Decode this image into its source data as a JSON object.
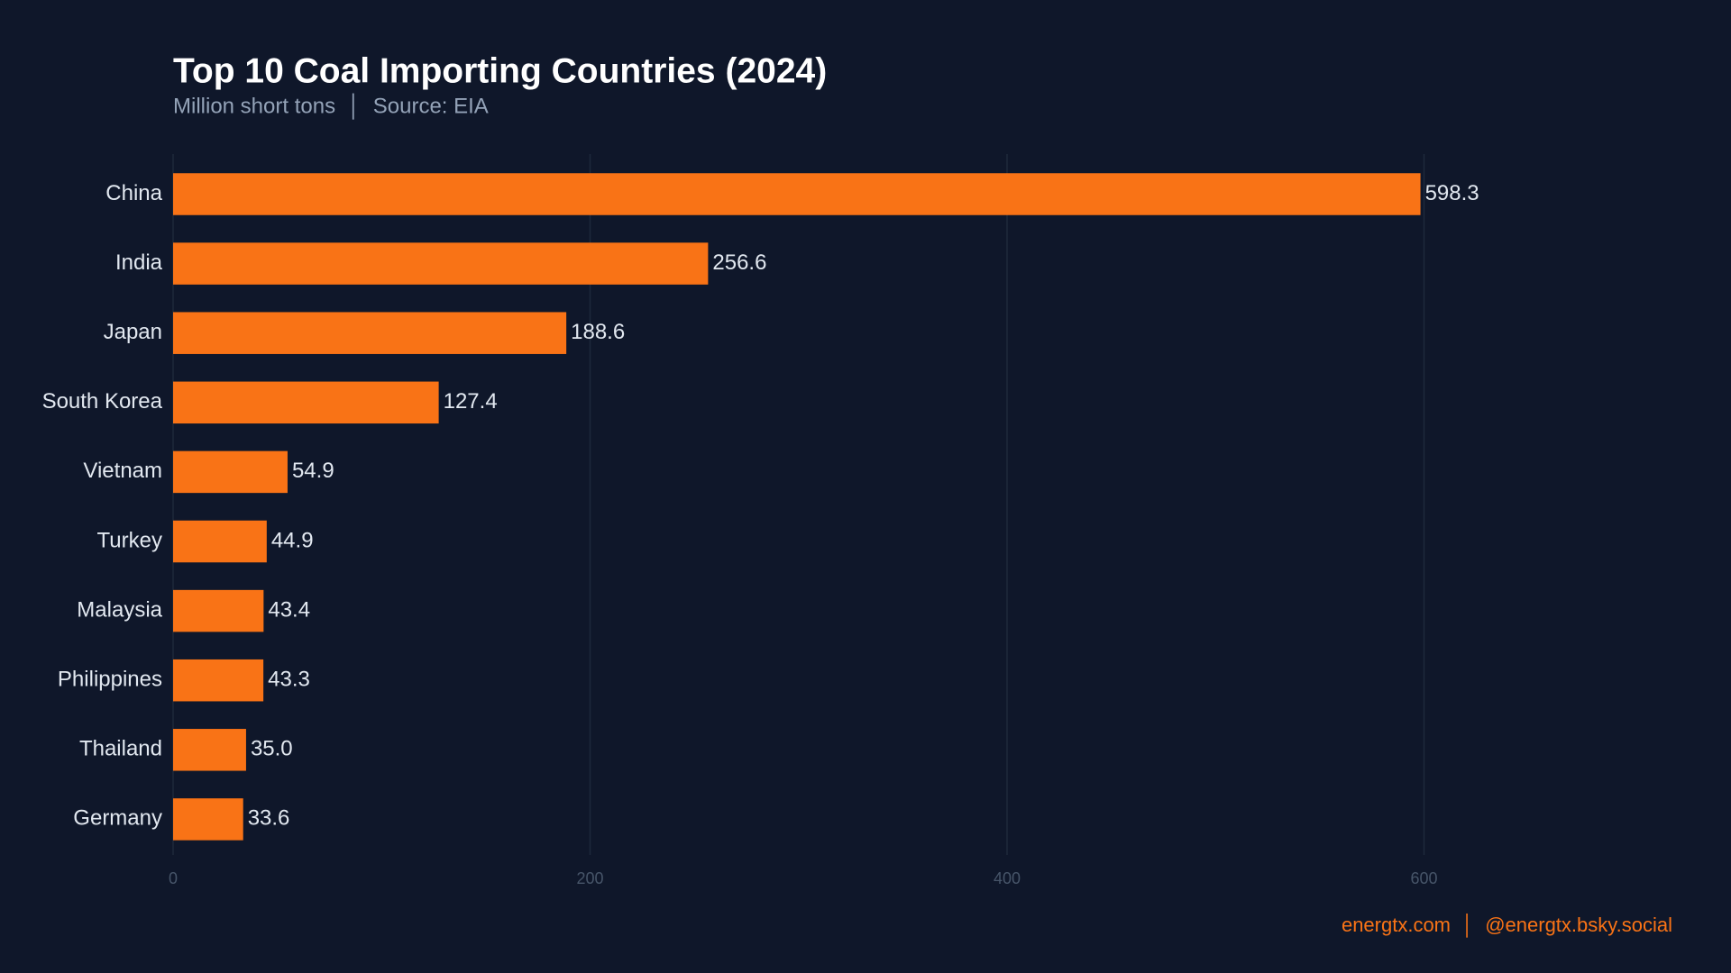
{
  "chart_data": {
    "type": "bar",
    "orientation": "horizontal",
    "title": "Top 10 Coal Importing Countries (2024)",
    "subtitle": "Million short tons  │  Source: EIA",
    "caption": "energtx.com  │  @energtx.bsky.social",
    "categories": [
      "China",
      "India",
      "Japan",
      "South Korea",
      "Vietnam",
      "Turkey",
      "Malaysia",
      "Philippines",
      "Thailand",
      "Germany"
    ],
    "values": [
      598.3,
      256.6,
      188.6,
      127.4,
      54.9,
      44.9,
      43.4,
      43.3,
      35.0,
      33.6
    ],
    "value_labels": [
      "598.3",
      "256.6",
      "188.6",
      "127.4",
      "54.9",
      "44.9",
      "43.4",
      "43.3",
      "35.0",
      "33.6"
    ],
    "color": "#f97316",
    "xlim": [
      0,
      720
    ],
    "xticks": [
      0,
      200,
      400,
      600
    ],
    "grid": true
  }
}
